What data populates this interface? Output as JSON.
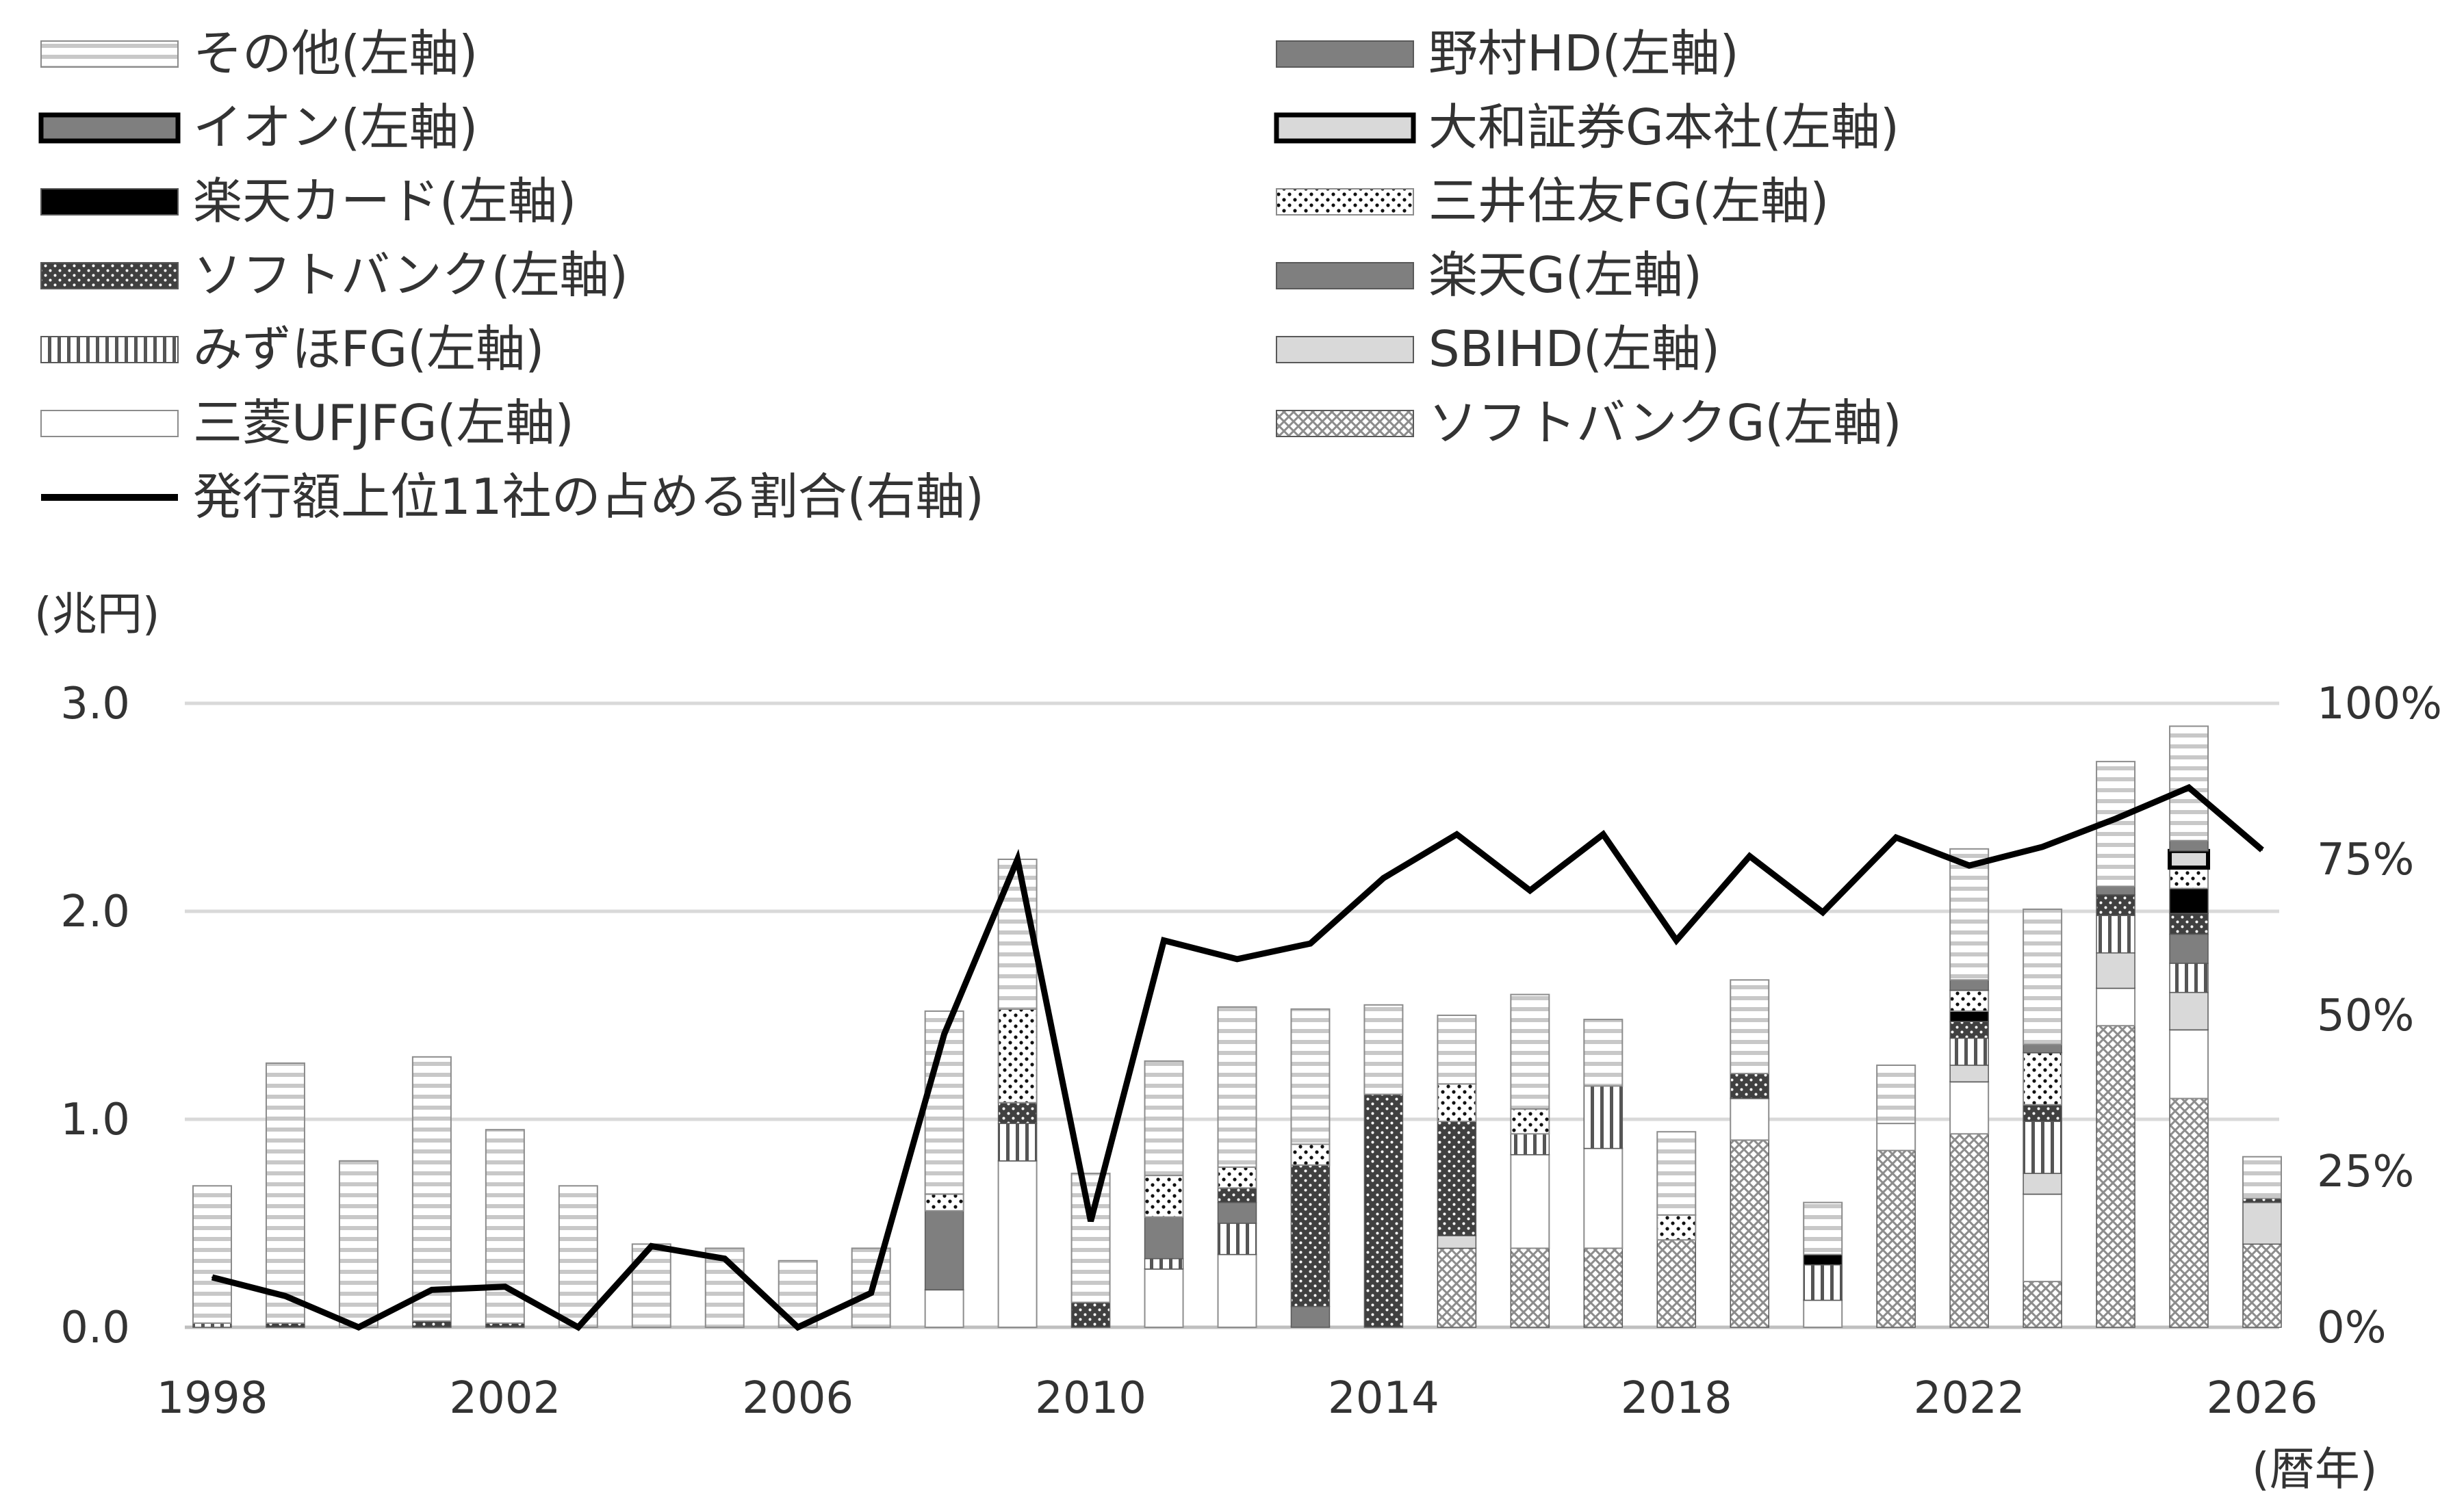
{
  "chart_data": {
    "type": "bar",
    "stacked": true,
    "title": "",
    "y_left_unit": "(兆円)",
    "x_unit": "(暦年)",
    "ylim": [
      0,
      3.0
    ],
    "y_right_lim": [
      0,
      100
    ],
    "y_ticks_left": [
      "0.0",
      "1.0",
      "2.0",
      "3.0"
    ],
    "y_ticks_right": [
      "0%",
      "25%",
      "50%",
      "75%",
      "100%"
    ],
    "x_ticks": [
      "1998",
      "2002",
      "2006",
      "2010",
      "2014",
      "2018",
      "2022",
      "2026"
    ],
    "grid": true,
    "legend_position": "top",
    "categories": [
      "1998",
      "1999",
      "2000",
      "2001",
      "2002",
      "2003",
      "2004",
      "2005",
      "2006",
      "2007",
      "2008",
      "2009",
      "2010",
      "2011",
      "2012",
      "2013",
      "2014",
      "2015",
      "2016",
      "2017",
      "2018",
      "2019",
      "2020",
      "2021",
      "2022",
      "2023",
      "2024",
      "2025",
      "2026"
    ],
    "series": [
      {
        "name": "ソフトバンクG(左軸)",
        "pattern": "crosshatch",
        "values": [
          0,
          0,
          0,
          0,
          0,
          0,
          0,
          0,
          0,
          0,
          0,
          0,
          0,
          0,
          0,
          0,
          0,
          0.38,
          0.38,
          0.38,
          0.42,
          0.9,
          0,
          0.85,
          0.93,
          0.22,
          1.45,
          1.1,
          0.4
        ]
      },
      {
        "name": "三菱UFJFG(左軸)",
        "pattern": "white",
        "values": [
          0,
          0,
          0,
          0,
          0,
          0,
          0,
          0,
          0,
          0,
          0.18,
          0.8,
          0,
          0.28,
          0.35,
          0,
          0,
          0,
          0.45,
          0.48,
          0,
          0.2,
          0.13,
          0.13,
          0.25,
          0.42,
          0.18,
          0.33,
          0
        ]
      },
      {
        "name": "SBIHD(左軸)",
        "pattern": "lightgray",
        "values": [
          0,
          0,
          0,
          0,
          0,
          0,
          0,
          0,
          0,
          0,
          0,
          0,
          0,
          0,
          0,
          0,
          0,
          0.06,
          0,
          0,
          0,
          0,
          0,
          0,
          0.08,
          0.1,
          0.17,
          0.18,
          0.2
        ]
      },
      {
        "name": "みずほFG(左軸)",
        "pattern": "vstripe",
        "values": [
          0.02,
          0,
          0,
          0,
          0,
          0,
          0,
          0,
          0,
          0,
          0,
          0.18,
          0,
          0.05,
          0.15,
          0,
          0,
          0,
          0.1,
          0.3,
          0,
          0,
          0.17,
          0,
          0.13,
          0.25,
          0.18,
          0.14,
          0
        ]
      },
      {
        "name": "楽天G(左軸)",
        "pattern": "midgray",
        "values": [
          0,
          0,
          0,
          0,
          0,
          0,
          0,
          0,
          0,
          0,
          0.38,
          0,
          0,
          0.2,
          0.1,
          0.1,
          0,
          0,
          0,
          0,
          0,
          0,
          0,
          0,
          0,
          0,
          0,
          0.14,
          0
        ]
      },
      {
        "name": "ソフトバンク(左軸)",
        "pattern": "darkdots",
        "values": [
          0,
          0.02,
          0,
          0.03,
          0.02,
          0,
          0,
          0,
          0,
          0,
          0,
          0.1,
          0.12,
          0,
          0.07,
          0.68,
          1.12,
          0.55,
          0,
          0,
          0,
          0.12,
          0,
          0,
          0.08,
          0.08,
          0.1,
          0.1,
          0.02
        ]
      },
      {
        "name": "楽天カード(左軸)",
        "pattern": "black",
        "values": [
          0,
          0,
          0,
          0,
          0,
          0,
          0,
          0,
          0,
          0,
          0,
          0,
          0,
          0,
          0,
          0,
          0,
          0,
          0,
          0,
          0,
          0,
          0.05,
          0,
          0.05,
          0,
          0,
          0.12,
          0
        ]
      },
      {
        "name": "三井住友FG(左軸)",
        "pattern": "whitedots",
        "values": [
          0,
          0,
          0,
          0,
          0,
          0,
          0,
          0,
          0,
          0,
          0.08,
          0.45,
          0,
          0.2,
          0.1,
          0.1,
          0,
          0.18,
          0.12,
          0,
          0.12,
          0,
          0,
          0,
          0.1,
          0.25,
          0,
          0.1,
          0
        ]
      },
      {
        "name": "イオン(左軸)",
        "pattern": "gray-outlined",
        "values": [
          0,
          0,
          0,
          0,
          0,
          0,
          0,
          0,
          0,
          0,
          0,
          0,
          0,
          0,
          0,
          0,
          0,
          0,
          0,
          0,
          0,
          0,
          0,
          0,
          0,
          0,
          0,
          0,
          0
        ]
      },
      {
        "name": "大和証券G本社(左軸)",
        "pattern": "lightgray-outlined",
        "values": [
          0,
          0,
          0,
          0,
          0,
          0,
          0,
          0,
          0,
          0,
          0,
          0,
          0,
          0,
          0,
          0,
          0,
          0,
          0,
          0,
          0,
          0,
          0,
          0,
          0,
          0,
          0,
          0.08,
          0
        ]
      },
      {
        "name": "野村HD(左軸)",
        "pattern": "midgray",
        "values": [
          0,
          0,
          0,
          0,
          0,
          0,
          0,
          0,
          0,
          0,
          0,
          0,
          0,
          0,
          0,
          0,
          0,
          0,
          0,
          0,
          0,
          0,
          0,
          0,
          0.05,
          0.04,
          0.04,
          0.05,
          0
        ]
      },
      {
        "name": "その他(左軸)",
        "pattern": "hstripe",
        "values": [
          0.66,
          1.25,
          0.8,
          1.27,
          0.93,
          0.68,
          0.4,
          0.38,
          0.32,
          0.38,
          0.88,
          0.72,
          0.62,
          0.55,
          0.77,
          0.65,
          0.43,
          0.33,
          0.55,
          0.32,
          0.4,
          0.45,
          0.25,
          0.28,
          0.63,
          0.65,
          0.6,
          0.55,
          0.2
        ]
      }
    ],
    "line_series": {
      "name": "発行額上位11社の占める割合(右軸)",
      "values": [
        8,
        5,
        0,
        6,
        6.5,
        0,
        13,
        11,
        0,
        5.5,
        47,
        75,
        17,
        62,
        59,
        61.5,
        72,
        79,
        70,
        79,
        62,
        75.5,
        66.5,
        78.5,
        74,
        77,
        81.5,
        86.5,
        76.5
      ]
    },
    "legend": [
      {
        "label": "その他(左軸)",
        "pattern": "hstripe"
      },
      {
        "label": "野村HD(左軸)",
        "pattern": "midgray"
      },
      {
        "label": "イオン(左軸)",
        "pattern": "gray-outlined"
      },
      {
        "label": "大和証券G本社(左軸)",
        "pattern": "lightgray-outlined"
      },
      {
        "label": "楽天カード(左軸)",
        "pattern": "black"
      },
      {
        "label": "三井住友FG(左軸)",
        "pattern": "whitedots"
      },
      {
        "label": "ソフトバンク(左軸)",
        "pattern": "darkdots"
      },
      {
        "label": "楽天G(左軸)",
        "pattern": "midgray"
      },
      {
        "label": "みずほFG(左軸)",
        "pattern": "vstripe"
      },
      {
        "label": "SBIHD(左軸)",
        "pattern": "lightgray"
      },
      {
        "label": "三菱UFJFG(左軸)",
        "pattern": "white"
      },
      {
        "label": "ソフトバンクG(左軸)",
        "pattern": "crosshatch"
      },
      {
        "label": "発行額上位11社の占める割合(右軸)",
        "pattern": "line"
      }
    ],
    "colors": {
      "grid": "#d9d9d9",
      "text": "#333333",
      "line": "#000000",
      "midgray": "#7f7f7f",
      "lightgray": "#d9d9d9",
      "black": "#000000",
      "stripe": "#bfbfbf"
    }
  }
}
